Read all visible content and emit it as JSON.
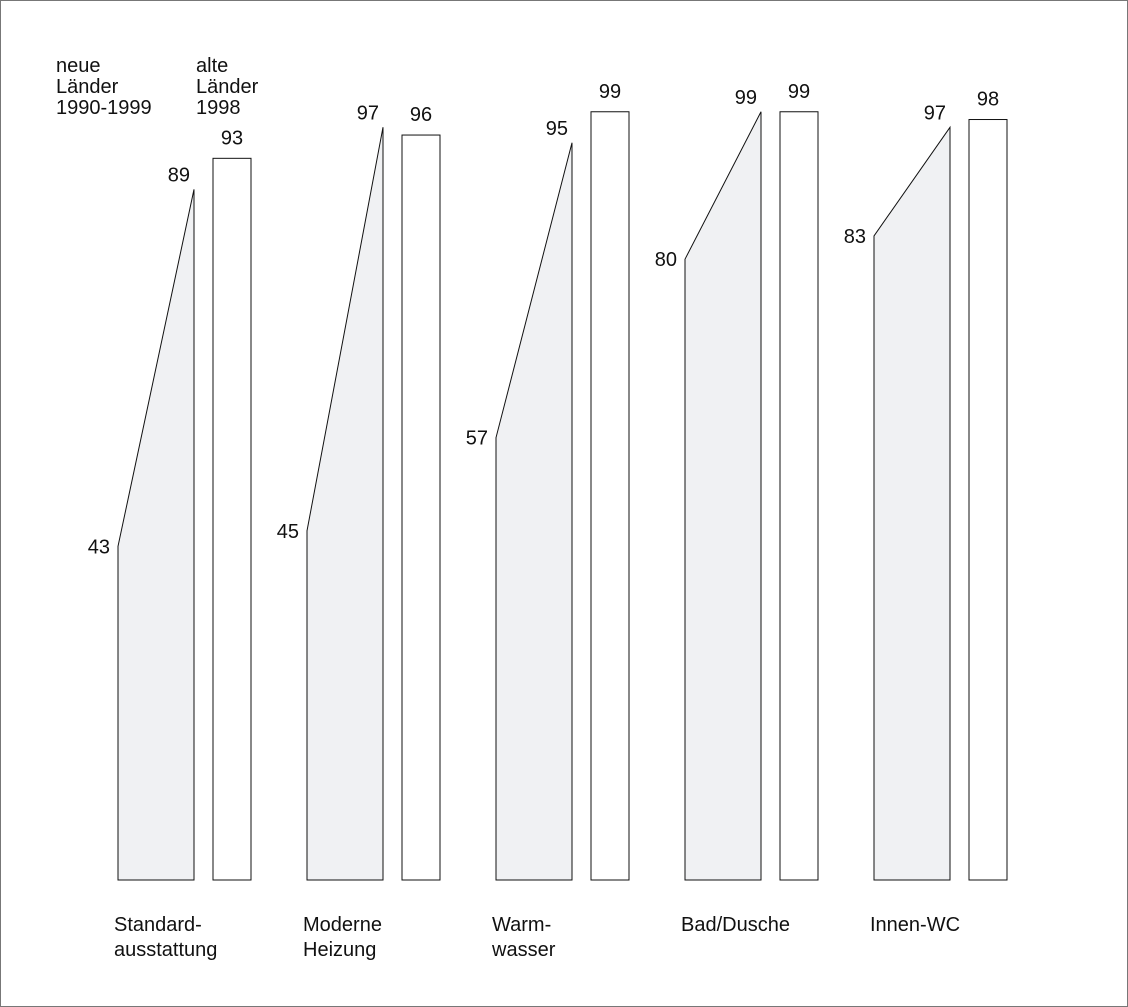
{
  "chart_data": {
    "type": "bar",
    "legend": [
      {
        "lines": [
          "neue",
          "Länder",
          "1990-1999"
        ]
      },
      {
        "lines": [
          "alte",
          "Länder",
          "1998"
        ]
      }
    ],
    "categories": [
      {
        "lines": [
          "Standard-",
          "ausstattung"
        ]
      },
      {
        "lines": [
          "Moderne",
          "Heizung"
        ]
      },
      {
        "lines": [
          "Warm-",
          "wasser"
        ]
      },
      {
        "lines": [
          "Bad/Dusche"
        ]
      },
      {
        "lines": [
          "Innen-WC"
        ]
      }
    ],
    "series": [
      {
        "kind": "range",
        "start": [
          43,
          45,
          57,
          80,
          83
        ],
        "end": [
          89,
          97,
          95,
          99,
          97
        ]
      },
      {
        "kind": "bar",
        "values": [
          93,
          96,
          99,
          99,
          98
        ]
      }
    ],
    "ylim": [
      0,
      100
    ],
    "grid": false,
    "colors": {
      "range_fill": "#f0f1f3",
      "bar_fill": "#ffffff",
      "stroke": "#111111"
    }
  }
}
